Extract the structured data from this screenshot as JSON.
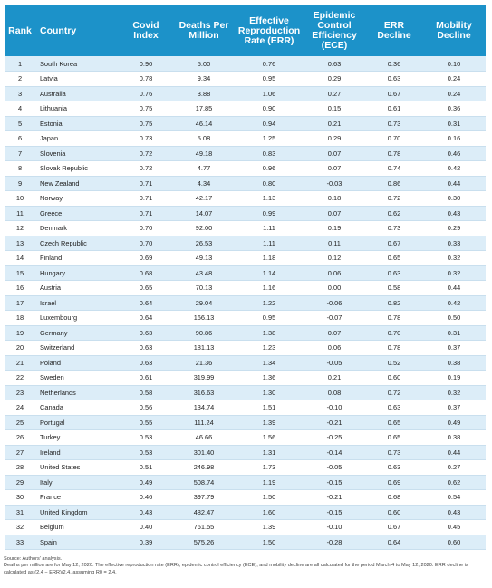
{
  "table": {
    "headers": [
      "Rank",
      "Country",
      "Covid Index",
      "Deaths Per Million",
      "Effective Reproduction Rate (ERR)",
      "Epidemic Control Efficiency (ECE)",
      "ERR Decline",
      "Mobility Decline"
    ],
    "rows": [
      [
        "1",
        "South Korea",
        "0.90",
        "5.00",
        "0.76",
        "0.63",
        "0.36",
        "0.10"
      ],
      [
        "2",
        "Latvia",
        "0.78",
        "9.34",
        "0.95",
        "0.29",
        "0.63",
        "0.24"
      ],
      [
        "3",
        "Australia",
        "0.76",
        "3.88",
        "1.06",
        "0.27",
        "0.67",
        "0.24"
      ],
      [
        "4",
        "Lithuania",
        "0.75",
        "17.85",
        "0.90",
        "0.15",
        "0.61",
        "0.36"
      ],
      [
        "5",
        "Estonia",
        "0.75",
        "46.14",
        "0.94",
        "0.21",
        "0.73",
        "0.31"
      ],
      [
        "6",
        "Japan",
        "0.73",
        "5.08",
        "1.25",
        "0.29",
        "0.70",
        "0.16"
      ],
      [
        "7",
        "Slovenia",
        "0.72",
        "49.18",
        "0.83",
        "0.07",
        "0.78",
        "0.46"
      ],
      [
        "8",
        "Slovak Republic",
        "0.72",
        "4.77",
        "0.96",
        "0.07",
        "0.74",
        "0.42"
      ],
      [
        "9",
        "New Zealand",
        "0.71",
        "4.34",
        "0.80",
        "-0.03",
        "0.86",
        "0.44"
      ],
      [
        "10",
        "Norway",
        "0.71",
        "42.17",
        "1.13",
        "0.18",
        "0.72",
        "0.30"
      ],
      [
        "11",
        "Greece",
        "0.71",
        "14.07",
        "0.99",
        "0.07",
        "0.62",
        "0.43"
      ],
      [
        "12",
        "Denmark",
        "0.70",
        "92.00",
        "1.11",
        "0.19",
        "0.73",
        "0.29"
      ],
      [
        "13",
        "Czech Republic",
        "0.70",
        "26.53",
        "1.11",
        "0.11",
        "0.67",
        "0.33"
      ],
      [
        "14",
        "Finland",
        "0.69",
        "49.13",
        "1.18",
        "0.12",
        "0.65",
        "0.32"
      ],
      [
        "15",
        "Hungary",
        "0.68",
        "43.48",
        "1.14",
        "0.06",
        "0.63",
        "0.32"
      ],
      [
        "16",
        "Austria",
        "0.65",
        "70.13",
        "1.16",
        "0.00",
        "0.58",
        "0.44"
      ],
      [
        "17",
        "Israel",
        "0.64",
        "29.04",
        "1.22",
        "-0.06",
        "0.82",
        "0.42"
      ],
      [
        "18",
        "Luxembourg",
        "0.64",
        "166.13",
        "0.95",
        "-0.07",
        "0.78",
        "0.50"
      ],
      [
        "19",
        "Germany",
        "0.63",
        "90.86",
        "1.38",
        "0.07",
        "0.70",
        "0.31"
      ],
      [
        "20",
        "Switzerland",
        "0.63",
        "181.13",
        "1.23",
        "0.06",
        "0.78",
        "0.37"
      ],
      [
        "21",
        "Poland",
        "0.63",
        "21.36",
        "1.34",
        "-0.05",
        "0.52",
        "0.38"
      ],
      [
        "22",
        "Sweden",
        "0.61",
        "319.99",
        "1.36",
        "0.21",
        "0.60",
        "0.19"
      ],
      [
        "23",
        "Netherlands",
        "0.58",
        "316.63",
        "1.30",
        "0.08",
        "0.72",
        "0.32"
      ],
      [
        "24",
        "Canada",
        "0.56",
        "134.74",
        "1.51",
        "-0.10",
        "0.63",
        "0.37"
      ],
      [
        "25",
        "Portugal",
        "0.55",
        "111.24",
        "1.39",
        "-0.21",
        "0.65",
        "0.49"
      ],
      [
        "26",
        "Turkey",
        "0.53",
        "46.66",
        "1.56",
        "-0.25",
        "0.65",
        "0.38"
      ],
      [
        "27",
        "Ireland",
        "0.53",
        "301.40",
        "1.31",
        "-0.14",
        "0.73",
        "0.44"
      ],
      [
        "28",
        "United States",
        "0.51",
        "246.98",
        "1.73",
        "-0.05",
        "0.63",
        "0.27"
      ],
      [
        "29",
        "Italy",
        "0.49",
        "508.74",
        "1.19",
        "-0.15",
        "0.69",
        "0.62"
      ],
      [
        "30",
        "France",
        "0.46",
        "397.79",
        "1.50",
        "-0.21",
        "0.68",
        "0.54"
      ],
      [
        "31",
        "United Kingdom",
        "0.43",
        "482.47",
        "1.60",
        "-0.15",
        "0.60",
        "0.43"
      ],
      [
        "32",
        "Belgium",
        "0.40",
        "761.55",
        "1.39",
        "-0.10",
        "0.67",
        "0.45"
      ],
      [
        "33",
        "Spain",
        "0.39",
        "575.26",
        "1.50",
        "-0.28",
        "0.64",
        "0.60"
      ]
    ]
  },
  "notes": {
    "source": "Source: Authors' analysis.",
    "detail": "Deaths per million are for May 12, 2020. The effective reproduction rate (ERR), epidemic control efficiency (ECE), and mobility decline are all calculated for the period March 4 to May 12, 2020. ERR decline is calculated as (2.4 − ERR)/2.4, assuming R0 = 2.4."
  },
  "colors": {
    "header_bg": "#1c92c9",
    "stripe_bg": "#dcedf8"
  }
}
